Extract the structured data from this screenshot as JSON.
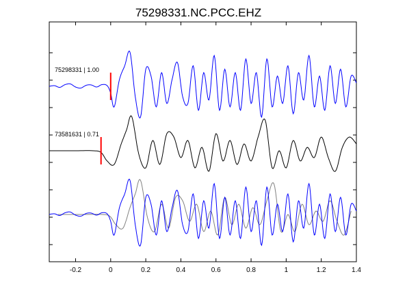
{
  "chart_data": {
    "type": "line",
    "title": "75298331.NC.PCC.EHZ",
    "xlabel": "",
    "ylabel": "",
    "xlim": [
      -0.35,
      1.4
    ],
    "xticks": [
      -0.2,
      0,
      0.2,
      0.4,
      0.6,
      0.8,
      1,
      1.2,
      1.4
    ],
    "xtick_labels": [
      "-0.2",
      "0",
      "0.2",
      "0.4",
      "0.6",
      "0.8",
      "1",
      "1.2",
      "1.4"
    ],
    "grid": false,
    "legend": "none",
    "colors": {
      "blue": "#0000ff",
      "black": "#000000",
      "gray": "#808080",
      "pick": "#ff0000"
    },
    "panels": [
      {
        "label": "75298331 | 1.00",
        "series": [
          {
            "color": "blue",
            "pick_time": 0.0
          }
        ]
      },
      {
        "label": "73581631 | 0.71",
        "series": [
          {
            "color": "black",
            "pick_time": -0.055
          }
        ]
      },
      {
        "label": "",
        "series": [
          {
            "color": "gray",
            "pick_time": null
          },
          {
            "color": "blue",
            "pick_time": null
          }
        ]
      }
    ],
    "waveform_points": {
      "trace_75298331": [
        [
          -0.35,
          0.0
        ],
        [
          -0.32,
          0.02
        ],
        [
          -0.29,
          -0.03
        ],
        [
          -0.26,
          0.05
        ],
        [
          -0.23,
          0.07
        ],
        [
          -0.2,
          -0.02
        ],
        [
          -0.17,
          -0.05
        ],
        [
          -0.14,
          0.03
        ],
        [
          -0.11,
          0.04
        ],
        [
          -0.08,
          -0.02
        ],
        [
          -0.05,
          0.05
        ],
        [
          -0.02,
          0.02
        ],
        [
          0.0,
          -0.2
        ],
        [
          0.02,
          -0.6
        ],
        [
          0.05,
          0.2
        ],
        [
          0.08,
          0.6
        ],
        [
          0.11,
          1.0
        ],
        [
          0.14,
          -0.3
        ],
        [
          0.17,
          -0.9
        ],
        [
          0.2,
          0.5
        ],
        [
          0.23,
          0.3
        ],
        [
          0.26,
          -0.6
        ],
        [
          0.29,
          0.4
        ],
        [
          0.32,
          -0.5
        ],
        [
          0.35,
          0.2
        ],
        [
          0.38,
          0.7
        ],
        [
          0.41,
          -0.3
        ],
        [
          0.44,
          -0.5
        ],
        [
          0.47,
          0.6
        ],
        [
          0.5,
          -0.7
        ],
        [
          0.53,
          0.4
        ],
        [
          0.56,
          -0.4
        ],
        [
          0.59,
          0.9
        ],
        [
          0.62,
          -0.7
        ],
        [
          0.65,
          0.5
        ],
        [
          0.68,
          -0.6
        ],
        [
          0.71,
          0.4
        ],
        [
          0.74,
          -0.7
        ],
        [
          0.77,
          0.8
        ],
        [
          0.8,
          -0.5
        ],
        [
          0.83,
          0.4
        ],
        [
          0.86,
          -0.9
        ],
        [
          0.89,
          0.8
        ],
        [
          0.92,
          -0.6
        ],
        [
          0.95,
          0.3
        ],
        [
          0.98,
          -0.5
        ],
        [
          1.01,
          0.6
        ],
        [
          1.04,
          -0.8
        ],
        [
          1.07,
          0.4
        ],
        [
          1.1,
          -0.4
        ],
        [
          1.13,
          0.9
        ],
        [
          1.16,
          -0.6
        ],
        [
          1.19,
          0.3
        ],
        [
          1.22,
          -0.7
        ],
        [
          1.25,
          0.6
        ],
        [
          1.28,
          -0.5
        ],
        [
          1.31,
          0.5
        ],
        [
          1.34,
          -0.6
        ],
        [
          1.37,
          0.3
        ],
        [
          1.4,
          0.1
        ]
      ],
      "trace_73581631": [
        [
          -0.35,
          0.0
        ],
        [
          -0.2,
          0.0
        ],
        [
          -0.1,
          0.0
        ],
        [
          -0.055,
          -0.05
        ],
        [
          -0.02,
          -0.3
        ],
        [
          0.02,
          -0.4
        ],
        [
          0.06,
          0.2
        ],
        [
          0.09,
          0.6
        ],
        [
          0.12,
          1.0
        ],
        [
          0.16,
          -0.1
        ],
        [
          0.2,
          -0.5
        ],
        [
          0.24,
          0.3
        ],
        [
          0.28,
          -0.4
        ],
        [
          0.32,
          0.5
        ],
        [
          0.36,
          0.4
        ],
        [
          0.4,
          -0.2
        ],
        [
          0.44,
          0.3
        ],
        [
          0.48,
          -0.5
        ],
        [
          0.52,
          0.1
        ],
        [
          0.56,
          -0.6
        ],
        [
          0.6,
          0.5
        ],
        [
          0.64,
          -0.3
        ],
        [
          0.68,
          0.3
        ],
        [
          0.72,
          -0.4
        ],
        [
          0.76,
          0.2
        ],
        [
          0.8,
          -0.3
        ],
        [
          0.84,
          0.4
        ],
        [
          0.88,
          0.9
        ],
        [
          0.92,
          -0.5
        ],
        [
          0.96,
          0.0
        ],
        [
          1.0,
          -0.5
        ],
        [
          1.04,
          0.3
        ],
        [
          1.08,
          -0.3
        ],
        [
          1.12,
          0.1
        ],
        [
          1.16,
          -0.2
        ],
        [
          1.2,
          0.4
        ],
        [
          1.24,
          -0.2
        ],
        [
          1.28,
          -0.6
        ],
        [
          1.32,
          0.1
        ],
        [
          1.36,
          0.4
        ],
        [
          1.4,
          0.2
        ]
      ]
    }
  }
}
